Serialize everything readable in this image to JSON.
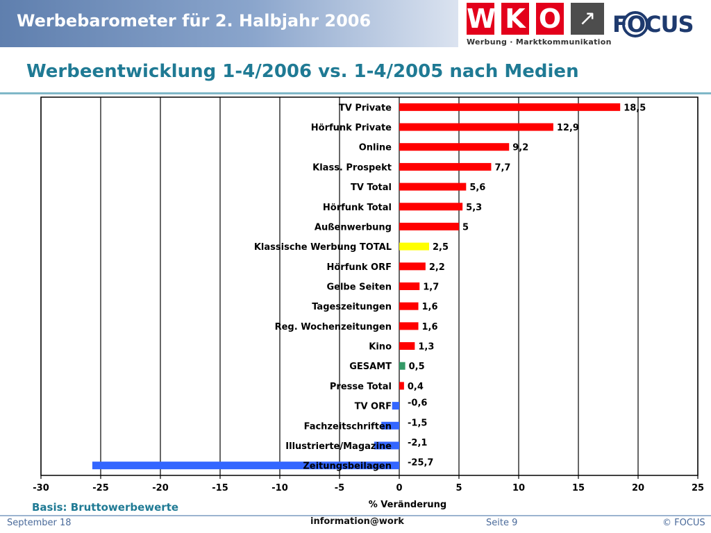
{
  "header": {
    "title": "Werbebarometer für 2. Halbjahr 2006",
    "wko_letters": [
      "W",
      "K",
      "O"
    ],
    "wko_subtitle": "Werbung · Marktkommunikation",
    "focus_logo": "FOCUS"
  },
  "slide_title": "Werbeentwicklung 1-4/2006 vs. 1-4/2005 nach Medien",
  "chart_data": {
    "type": "bar",
    "orientation": "horizontal",
    "categories": [
      "TV Private",
      "Hörfunk Private",
      "Online",
      "Klass. Prospekt",
      "TV Total",
      "Hörfunk Total",
      "Außenwerbung",
      "Klassische Werbung TOTAL",
      "Hörfunk ORF",
      "Gelbe Seiten",
      "Tageszeitungen",
      "Reg. Wochenzeitungen",
      "Kino",
      "GESAMT",
      "Presse Total",
      "TV ORF",
      "Fachzeitschriften",
      "Illustrierte/Magazine",
      "Zeitungsbeilagen"
    ],
    "values": [
      18.5,
      12.9,
      9.2,
      7.7,
      5.6,
      5.3,
      5,
      2.5,
      2.2,
      1.7,
      1.6,
      1.6,
      1.3,
      0.5,
      0.4,
      -0.6,
      -1.5,
      -2.1,
      -25.7
    ],
    "value_labels": [
      "18,5",
      "12,9",
      "9,2",
      "7,7",
      "5,6",
      "5,3",
      "5",
      "2,5",
      "2,2",
      "1,7",
      "1,6",
      "1,6",
      "1,3",
      "0,5",
      "0,4",
      "-0,6",
      "-1,5",
      "-2,1",
      "-25,7"
    ],
    "bar_colors": [
      "#ff0000",
      "#ff0000",
      "#ff0000",
      "#ff0000",
      "#ff0000",
      "#ff0000",
      "#ff0000",
      "#ffff00",
      "#ff0000",
      "#ff0000",
      "#ff0000",
      "#ff0000",
      "#ff0000",
      "#339966",
      "#ff0000",
      "#3366ff",
      "#3366ff",
      "#3366ff",
      "#3366ff"
    ],
    "xlim": [
      -30,
      25
    ],
    "xticks": [
      "-30",
      "-25",
      "-20",
      "-15",
      "-10",
      "-5",
      "0",
      "5",
      "10",
      "15",
      "20",
      "25"
    ],
    "xlabel": "% Veränderung",
    "grid": "vertical"
  },
  "basis": "Basis: Bruttowerbewerte",
  "footer": {
    "date": "September 18",
    "center": "information@work",
    "page": "Seite 9",
    "copyright": "© FOCUS"
  }
}
